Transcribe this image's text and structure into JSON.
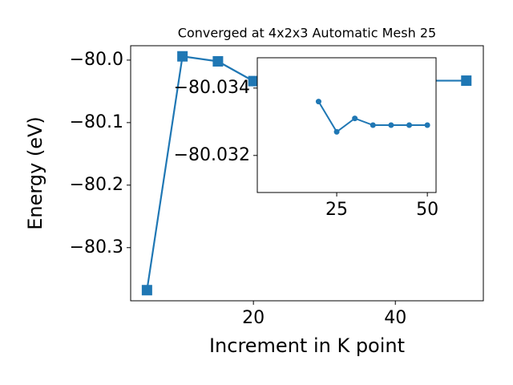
{
  "chart_data": [
    {
      "type": "line",
      "title": "Converged at 4x2x3 Automatic Mesh 25",
      "x_label": "Increment in K point",
      "y_label": "Energy (eV)",
      "x": [
        5,
        10,
        15,
        20,
        25,
        30,
        35,
        40,
        45,
        50
      ],
      "series": [
        {
          "color": "#1f77b4",
          "marker": "square",
          "values": [
            -80.368,
            -79.994,
            -80.002,
            -80.0336,
            -80.0327,
            -80.0331,
            -80.0329,
            -80.0329,
            -80.0329,
            -80.0329
          ]
        }
      ],
      "xlim": [
        2.7,
        52.4
      ],
      "ylim": [
        -80.385,
        -79.977
      ],
      "xticks": [
        20,
        40
      ],
      "yticks": [
        {
          "value": -80.0,
          "label": "−80.0"
        },
        {
          "value": -80.1,
          "label": "−80.1"
        },
        {
          "value": -80.2,
          "label": "−80.2"
        },
        {
          "value": -80.3,
          "label": "−80.3"
        }
      ]
    },
    {
      "type": "line",
      "inset": true,
      "x": [
        20,
        25,
        30,
        35,
        40,
        45,
        50
      ],
      "series": [
        {
          "color": "#1f77b4",
          "marker": "circle",
          "values": [
            -80.0336,
            -80.0327,
            -80.0331,
            -80.0329,
            -80.0329,
            -80.0329,
            -80.0329
          ]
        }
      ],
      "xlim": [
        3.1,
        52.4
      ],
      "ylim": [
        -80.0349,
        -80.0309
      ],
      "y_inverted": true,
      "xticks": [
        25,
        50
      ],
      "yticks": [
        {
          "value": -80.034,
          "label": "−80.034"
        },
        {
          "value": -80.032,
          "label": "−80.032"
        }
      ]
    }
  ]
}
